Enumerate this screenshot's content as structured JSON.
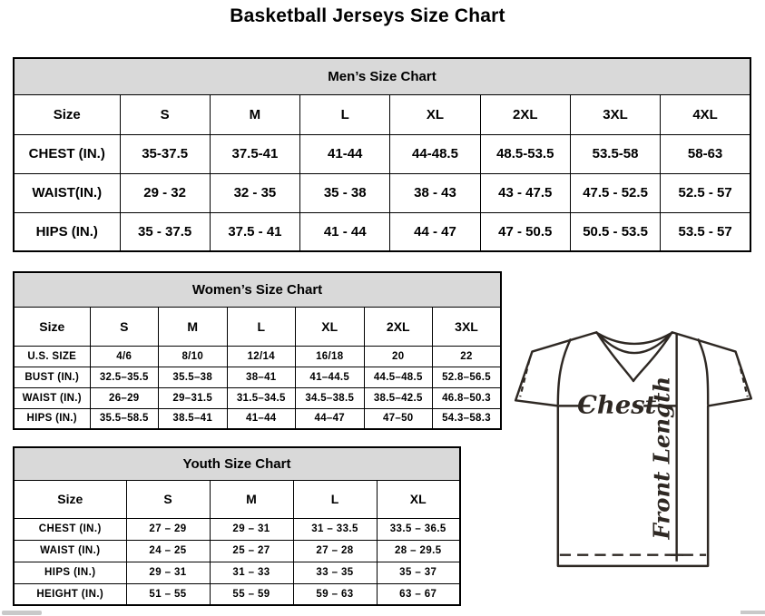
{
  "page_title": "Basketball Jerseys Size Chart",
  "tables": {
    "men": {
      "title": "Men’s Size Chart",
      "columns": [
        "Size",
        "S",
        "M",
        "L",
        "XL",
        "2XL",
        "3XL",
        "4XL"
      ],
      "rows": [
        {
          "label": "CHEST (IN.)",
          "values": [
            "35-37.5",
            "37.5-41",
            "41-44",
            "44-48.5",
            "48.5-53.5",
            "53.5-58",
            "58-63"
          ]
        },
        {
          "label": "WAIST(IN.)",
          "values": [
            "29 - 32",
            "32 - 35",
            "35 - 38",
            "38 - 43",
            "43 - 47.5",
            "47.5 - 52.5",
            "52.5 - 57"
          ]
        },
        {
          "label": "HIPS (IN.)",
          "values": [
            "35 - 37.5",
            "37.5 - 41",
            "41 - 44",
            "44 - 47",
            "47 - 50.5",
            "50.5 - 53.5",
            "53.5 - 57"
          ]
        }
      ]
    },
    "women": {
      "title": "Women’s Size Chart",
      "columns": [
        "Size",
        "S",
        "M",
        "L",
        "XL",
        "2XL",
        "3XL"
      ],
      "rows": [
        {
          "label": "U.S. SIZE",
          "values": [
            "4/6",
            "8/10",
            "12/14",
            "16/18",
            "20",
            "22"
          ]
        },
        {
          "label": "BUST (IN.)",
          "values": [
            "32.5–35.5",
            "35.5–38",
            "38–41",
            "41–44.5",
            "44.5–48.5",
            "52.8–56.5"
          ]
        },
        {
          "label": "WAIST (IN.)",
          "values": [
            "26–29",
            "29–31.5",
            "31.5–34.5",
            "34.5–38.5",
            "38.5–42.5",
            "46.8–50.3"
          ]
        },
        {
          "label": "HIPS (IN.)",
          "values": [
            "35.5–58.5",
            "38.5–41",
            "41–44",
            "44–47",
            "47–50",
            "54.3–58.3"
          ]
        }
      ]
    },
    "youth": {
      "title": "Youth Size Chart",
      "columns": [
        "Size",
        "S",
        "M",
        "L",
        "XL"
      ],
      "rows": [
        {
          "label": "CHEST (IN.)",
          "values": [
            "27 – 29",
            "29 – 31",
            "31 – 33.5",
            "33.5 – 36.5"
          ]
        },
        {
          "label": "WAIST (IN.)",
          "values": [
            "24 – 25",
            "25 – 27",
            "27 – 28",
            "28 – 29.5"
          ]
        },
        {
          "label": "HIPS (IN.)",
          "values": [
            "29 – 31",
            "31 – 33",
            "33 – 35",
            "35 – 37"
          ]
        },
        {
          "label": "HEIGHT (IN.)",
          "values": [
            "51 – 55",
            "55 – 59",
            "59 – 63",
            "63 – 67"
          ]
        }
      ]
    }
  },
  "diagram": {
    "chest_label": "Chest",
    "front_length_label": "Front Length"
  },
  "colors": {
    "table_header_bg": "#d9d9d9",
    "table_border": "#000000",
    "diagram_stroke": "#2e2823",
    "scrollbar": "#c9c9c9"
  }
}
